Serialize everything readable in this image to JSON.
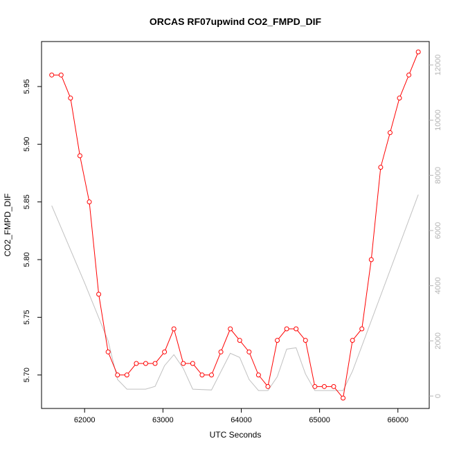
{
  "chart_data": {
    "type": "line",
    "title": "ORCAS RF07upwind CO2_FMPD_DIF",
    "xlabel": "UTC Seconds",
    "ylabel": "CO2_FMPD_DIF",
    "xlim": [
      61450,
      66400
    ],
    "ylim": [
      5.671,
      5.989
    ],
    "y2lim": [
      -450,
      12850
    ],
    "x_ticks": [
      62000,
      63000,
      64000,
      65000,
      66000
    ],
    "y_ticks": [
      5.7,
      5.75,
      5.8,
      5.85,
      5.9,
      5.95
    ],
    "y_tick_labels": [
      "5.70",
      "5.75",
      "5.80",
      "5.85",
      "5.90",
      "5.95"
    ],
    "y2_ticks": [
      0,
      2000,
      4000,
      6000,
      8000,
      10000,
      12000
    ],
    "grid": false,
    "colors": {
      "primary": "#ff0000",
      "secondary": "#c0c0c0",
      "axis": "#000000",
      "secondary_axis": "#b4b4b4"
    },
    "series": [
      {
        "axis": "left",
        "marker": "open-circle",
        "x": [
          61580,
          61700,
          61820,
          61940,
          62060,
          62180,
          62300,
          62420,
          62540,
          62660,
          62780,
          62900,
          63020,
          63140,
          63260,
          63380,
          63500,
          63620,
          63740,
          63860,
          63980,
          64100,
          64220,
          64340,
          64460,
          64580,
          64700,
          64820,
          64940,
          65060,
          65180,
          65300,
          65420,
          65540,
          65660,
          65780,
          65900,
          66020,
          66140,
          66260
        ],
        "values": [
          5.96,
          5.96,
          5.94,
          5.89,
          5.85,
          5.77,
          5.72,
          5.7,
          5.7,
          5.71,
          5.71,
          5.71,
          5.72,
          5.74,
          5.71,
          5.71,
          5.7,
          5.7,
          5.72,
          5.74,
          5.73,
          5.72,
          5.7,
          5.69,
          5.73,
          5.74,
          5.74,
          5.73,
          5.69,
          5.69,
          5.69,
          5.68,
          5.73,
          5.74,
          5.8,
          5.88,
          5.91,
          5.94,
          5.96,
          5.98
        ]
      },
      {
        "axis": "right",
        "x": [
          61580,
          62000,
          62300,
          62420,
          62540,
          62780,
          62900,
          63020,
          63140,
          63260,
          63380,
          63620,
          63860,
          63980,
          64100,
          64220,
          64340,
          64460,
          64580,
          64700,
          64820,
          64940,
          65300,
          65420,
          66260
        ],
        "values": [
          6900,
          4100,
          2000,
          600,
          250,
          250,
          350,
          1100,
          1500,
          1000,
          250,
          220,
          1550,
          1400,
          600,
          200,
          200,
          700,
          1700,
          1750,
          800,
          200,
          200,
          900,
          7300
        ]
      }
    ]
  }
}
